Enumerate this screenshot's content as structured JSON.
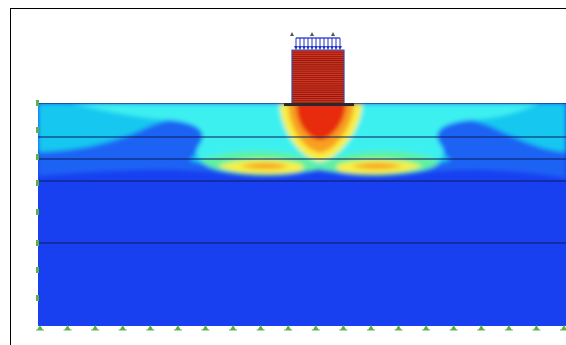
{
  "model": {
    "colors": {
      "background": "#ffffff",
      "frame": "#000000",
      "soil_base": "#1840f0",
      "soil_light": "#1c64f4",
      "contour_cyan": "#12c8f0",
      "contour_light_cyan": "#3cf0f0",
      "contour_green": "#60f0a0",
      "contour_yellow": "#f8f040",
      "contour_orange": "#f8a020",
      "contour_red": "#e82a10",
      "structure_fill": "#d8321e",
      "structure_lines": "#7a1a10",
      "structure_outline": "#3050c0",
      "load_arrows": "#2030c8",
      "layer_boundary": "#0a1a60",
      "fixity_marker": "#5cb04a"
    },
    "icons": {
      "fixity_support": "triangle-support-icon",
      "surface_load": "distributed-load-icon"
    },
    "structure": {
      "floors": 26
    },
    "surface_load": {
      "arrow_count": 12
    },
    "soil_layers": {
      "count": 5
    },
    "bottom_supports": {
      "count": 20
    },
    "side_supports": {
      "count": 8
    },
    "top_markers": {
      "count": 3
    }
  }
}
